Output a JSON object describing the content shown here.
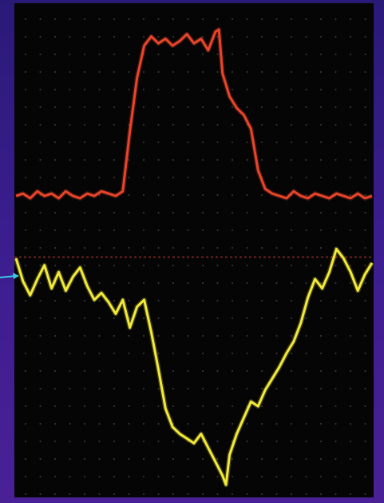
{
  "chart_data": {
    "type": "line",
    "title": "",
    "xlabel": "",
    "ylabel": "",
    "grid": true,
    "xlim": [
      0,
      100
    ],
    "ylim": [
      -10,
      10
    ],
    "series": [
      {
        "color": "#e8452b",
        "points": [
          [
            0,
            2.7
          ],
          [
            2,
            2.8
          ],
          [
            4,
            2.6
          ],
          [
            6,
            2.9
          ],
          [
            8,
            2.7
          ],
          [
            10,
            2.8
          ],
          [
            12,
            2.6
          ],
          [
            14,
            2.9
          ],
          [
            16,
            2.7
          ],
          [
            18,
            2.6
          ],
          [
            20,
            2.8
          ],
          [
            22,
            2.7
          ],
          [
            24,
            2.9
          ],
          [
            26,
            2.8
          ],
          [
            28,
            2.7
          ],
          [
            30,
            2.9
          ],
          [
            32,
            5.5
          ],
          [
            34,
            7.8
          ],
          [
            36,
            9.2
          ],
          [
            38,
            9.6
          ],
          [
            40,
            9.3
          ],
          [
            42,
            9.5
          ],
          [
            44,
            9.2
          ],
          [
            46,
            9.4
          ],
          [
            48,
            9.7
          ],
          [
            50,
            9.3
          ],
          [
            52,
            9.5
          ],
          [
            54,
            9.0
          ],
          [
            56,
            9.8
          ],
          [
            57,
            9.9
          ],
          [
            58,
            8.0
          ],
          [
            60,
            7.0
          ],
          [
            62,
            6.5
          ],
          [
            64,
            6.2
          ],
          [
            66,
            5.6
          ],
          [
            68,
            3.8
          ],
          [
            70,
            3.0
          ],
          [
            72,
            2.8
          ],
          [
            74,
            2.7
          ],
          [
            76,
            2.6
          ],
          [
            78,
            2.9
          ],
          [
            80,
            2.7
          ],
          [
            82,
            2.6
          ],
          [
            84,
            2.8
          ],
          [
            86,
            2.7
          ],
          [
            88,
            2.6
          ],
          [
            90,
            2.8
          ],
          [
            92,
            2.7
          ],
          [
            94,
            2.6
          ],
          [
            96,
            2.8
          ],
          [
            98,
            2.6
          ],
          [
            100,
            2.7
          ]
        ]
      },
      {
        "color": "#f2ea3a",
        "points": [
          [
            0,
            0.0
          ],
          [
            2,
            -1.0
          ],
          [
            4,
            -1.6
          ],
          [
            6,
            -0.9
          ],
          [
            8,
            -0.3
          ],
          [
            10,
            -1.3
          ],
          [
            12,
            -0.6
          ],
          [
            14,
            -1.4
          ],
          [
            16,
            -0.8
          ],
          [
            18,
            -0.4
          ],
          [
            20,
            -1.2
          ],
          [
            22,
            -1.8
          ],
          [
            24,
            -1.5
          ],
          [
            26,
            -1.9
          ],
          [
            28,
            -2.4
          ],
          [
            30,
            -1.8
          ],
          [
            32,
            -3.0
          ],
          [
            34,
            -2.1
          ],
          [
            36,
            -1.8
          ],
          [
            38,
            -3.2
          ],
          [
            40,
            -4.8
          ],
          [
            42,
            -6.5
          ],
          [
            44,
            -7.3
          ],
          [
            46,
            -7.6
          ],
          [
            48,
            -7.8
          ],
          [
            50,
            -8.0
          ],
          [
            52,
            -7.6
          ],
          [
            54,
            -8.2
          ],
          [
            56,
            -8.8
          ],
          [
            58,
            -9.4
          ],
          [
            59,
            -9.8
          ],
          [
            60,
            -8.5
          ],
          [
            62,
            -7.6
          ],
          [
            64,
            -6.9
          ],
          [
            66,
            -6.2
          ],
          [
            68,
            -6.4
          ],
          [
            70,
            -5.7
          ],
          [
            72,
            -5.2
          ],
          [
            74,
            -4.7
          ],
          [
            76,
            -4.1
          ],
          [
            78,
            -3.6
          ],
          [
            80,
            -2.8
          ],
          [
            82,
            -1.7
          ],
          [
            84,
            -0.9
          ],
          [
            86,
            -1.3
          ],
          [
            88,
            -0.6
          ],
          [
            90,
            0.4
          ],
          [
            92,
            0.0
          ],
          [
            94,
            -0.6
          ],
          [
            96,
            -1.4
          ],
          [
            98,
            -0.7
          ],
          [
            100,
            -0.2
          ]
        ]
      }
    ],
    "reference_line": {
      "y": 0.05,
      "color": "#8a2f22",
      "style": "dotted"
    }
  },
  "colors": {
    "background": "#3a1d8e",
    "screen": "#050505",
    "grid_dots": "#6b6b6b",
    "arrow": "#3fc7e6"
  },
  "icons": {
    "pointer": "arrow-pointer-icon"
  }
}
